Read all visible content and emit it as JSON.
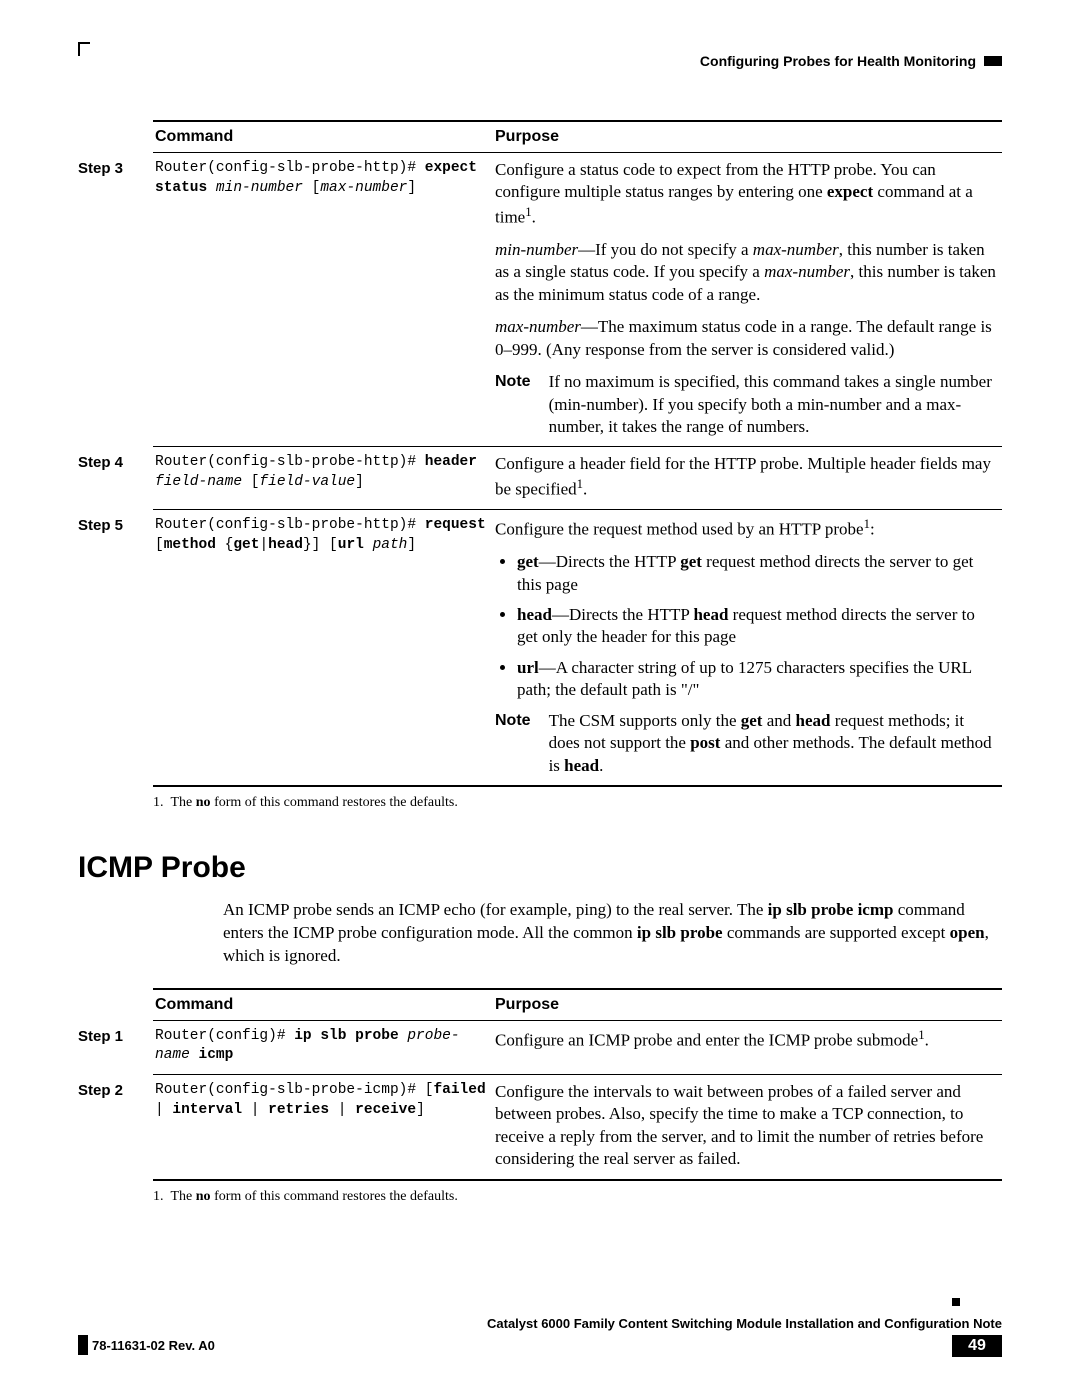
{
  "header": {
    "running_title": "Configuring Probes for Health Monitoring"
  },
  "table1": {
    "columns": [
      "Command",
      "Purpose"
    ],
    "rows": [
      {
        "step": "Step 3",
        "command_html": "Router(config-slb-probe-http)# <b>expect</b> <b>status</b> <i>min-number</i> [<i>max-number</i>]",
        "purpose_html": "<p class=\"para\">Configure a status code to expect from the HTTP probe. You can configure multiple status ranges by entering one <b>expect</b> command at a time<sup>1</sup>.</p><p class=\"para\"><i>min-number</i>—If you do not specify a <i>max-number</i>, this number is taken as a single status code. If you specify a <i>max-number</i>, this number is taken as the minimum status code of a range.</p><p class=\"para\"><i>max-number</i>—The maximum status code in a range. The default range is 0–999. (Any response from the server is considered valid.)</p><div class=\"note-row\"><div class=\"note-label\">Note</div><div class=\"note-body\">If no maximum is specified, this command takes a single number (min-number). If you specify both a min-number and a max-number, it takes the range of numbers.</div></div>"
      },
      {
        "step": "Step 4",
        "command_html": "Router(config-slb-probe-http)# <b>header</b> <i>field-name</i> [<i>field-value</i>]",
        "purpose_html": "<p class=\"para\">Configure a header field for the HTTP probe. Multiple header fields may be specified<sup>1</sup>.</p>"
      },
      {
        "step": "Step 5",
        "command_html": "Router(config-slb-probe-http)# <b>request</b> [<b>method</b> {<b>get</b>|<b>head</b>}] [<b>url</b> <i>path</i>]",
        "purpose_html": "<p class=\"para\">Configure the request method used by an HTTP probe<sup>1</sup>:</p><ul class=\"bullets\"><li><b>get</b>—Directs the HTTP <b>get</b> request method directs the server to get this page</li><li><b>head</b>—Directs the HTTP <b>head</b> request method directs the server to get only the header for this page</li><li><b>url</b>—A character string of up to 1275 characters specifies the URL path; the default path is \"/\"</li></ul><div class=\"note-row\"><div class=\"note-label\">Note</div><div class=\"note-body\">The CSM supports only the <b>get</b> and <b>head</b> request methods; it does not support the <b>post</b> and other methods. The default method is <b>head</b>.</div></div>"
      }
    ],
    "footnote_html": "1.&nbsp;&nbsp;The <b>no</b> form of this command restores the defaults."
  },
  "section": {
    "title": "ICMP Probe",
    "intro_html": "An ICMP probe sends an ICMP echo (for example, ping) to the real server. The <b>ip slb probe icmp</b> command enters the ICMP probe configuration mode. All the common <b>ip slb probe</b> commands are supported except <b>open</b>, which is ignored."
  },
  "table2": {
    "columns": [
      "Command",
      "Purpose"
    ],
    "rows": [
      {
        "step": "Step 1",
        "command_html": "Router(config)# <b>ip slb probe</b> <i>probe-name</i> <b>icmp</b>",
        "purpose_html": "<p class=\"para\">Configure an ICMP probe and enter the ICMP probe submode<sup>1</sup>.</p>"
      },
      {
        "step": "Step 2",
        "command_html": "Router(config-slb-probe-icmp)# [<b>failed</b> | <b>interval</b> | <b>retries</b> | <b>receive</b>]",
        "purpose_html": "<p class=\"para\">Configure the intervals to wait between probes of a failed server and between probes. Also, specify the time to make a TCP connection, to receive a reply from the server, and to limit the number of retries before considering the real server as failed.</p>"
      }
    ],
    "footnote_html": "1.&nbsp;&nbsp;The <b>no</b> form of this command restores the defaults."
  },
  "footer": {
    "book_title": "Catalyst 6000 Family Content Switching Module Installation and Configuration Note",
    "revision": "78-11631-02 Rev. A0",
    "page_number": "49"
  }
}
